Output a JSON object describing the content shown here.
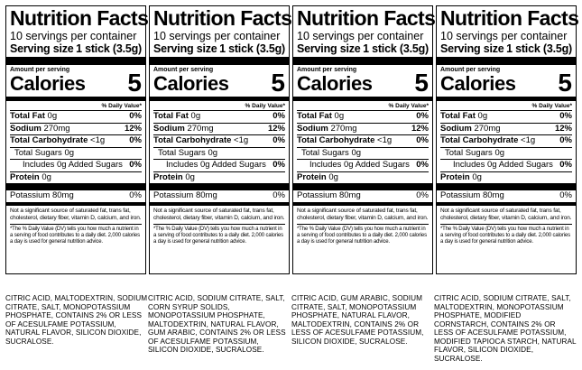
{
  "panels": [
    {
      "title": "Nutrition Facts",
      "servings": "10 servings per container",
      "serving_label": "Serving size",
      "serving_value": "1 stick (3.5g)",
      "amount_label": "Amount per serving",
      "calories_label": "Calories",
      "calories_value": "5",
      "dv_header": "% Daily Value*",
      "total_fat": {
        "label": "Total Fat",
        "value": "0g",
        "pct": "0%"
      },
      "sodium": {
        "label": "Sodium",
        "value": "270mg",
        "pct": "12%"
      },
      "total_carb": {
        "label": "Total Carbohydrate",
        "value": "<1g",
        "pct": "0%"
      },
      "total_sugars": {
        "label": "Total Sugars 0g"
      },
      "added_sugars": {
        "label": "Includes 0g Added Sugars",
        "pct": "0%"
      },
      "protein": {
        "label": "Protein",
        "value": "0g"
      },
      "potassium": {
        "label": "Potassium 80mg",
        "pct": "0%"
      },
      "note1": "Not a significant source of saturated fat, trans fat, cholesterol, dietary fiber, vitamin D, calcium, and iron.",
      "note2": "*The % Daily Value (DV) tells you how much a nutrient in a serving of food contributes to a daily diet. 2,000 calories a day is used for general nutrition advice."
    },
    {
      "title": "Nutrition Facts",
      "servings": "10 servings per container",
      "serving_label": "Serving size",
      "serving_value": "1 stick (3.5g)",
      "amount_label": "Amount per serving",
      "calories_label": "Calories",
      "calories_value": "5",
      "dv_header": "% Daily Value*",
      "total_fat": {
        "label": "Total Fat",
        "value": "0g",
        "pct": "0%"
      },
      "sodium": {
        "label": "Sodium",
        "value": "270mg",
        "pct": "12%"
      },
      "total_carb": {
        "label": "Total Carbohydrate",
        "value": "<1g",
        "pct": "0%"
      },
      "total_sugars": {
        "label": "Total Sugars 0g"
      },
      "added_sugars": {
        "label": "Includes 0g Added Sugars",
        "pct": "0%"
      },
      "protein": {
        "label": "Protein",
        "value": "0g"
      },
      "potassium": {
        "label": "Potassium 80mg",
        "pct": "0%"
      },
      "note1": "Not a significant source of saturated fat, trans fat, cholesterol, dietary fiber, vitamin D, calcium, and iron.",
      "note2": "*The % Daily Value (DV) tells you how much a nutrient in a serving of food contributes to a daily diet. 2,000 calories a day is used for general nutrition advice."
    },
    {
      "title": "Nutrition Facts",
      "servings": "10 servings per container",
      "serving_label": "Serving size",
      "serving_value": "1 stick (3.5g)",
      "amount_label": "Amount per serving",
      "calories_label": "Calories",
      "calories_value": "5",
      "dv_header": "% Daily Value*",
      "total_fat": {
        "label": "Total Fat",
        "value": "0g",
        "pct": "0%"
      },
      "sodium": {
        "label": "Sodium",
        "value": "270mg",
        "pct": "12%"
      },
      "total_carb": {
        "label": "Total Carbohydrate",
        "value": "<1g",
        "pct": "0%"
      },
      "total_sugars": {
        "label": "Total Sugars 0g"
      },
      "added_sugars": {
        "label": "Includes 0g Added Sugars",
        "pct": "0%"
      },
      "protein": {
        "label": "Protein",
        "value": "0g"
      },
      "potassium": {
        "label": "Potassium 80mg",
        "pct": "0%"
      },
      "note1": "Not a significant source of saturated fat, trans fat, cholesterol, dietary fiber, vitamin D, calcium, and iron.",
      "note2": "*The % Daily Value (DV) tells you how much a nutrient in a serving of food contributes to a daily diet. 2,000 calories a day is used for general nutrition advice."
    },
    {
      "title": "Nutrition Facts",
      "servings": "10 servings per container",
      "serving_label": "Serving size",
      "serving_value": "1 stick (3.5g)",
      "amount_label": "Amount per serving",
      "calories_label": "Calories",
      "calories_value": "5",
      "dv_header": "% Daily Value*",
      "total_fat": {
        "label": "Total Fat",
        "value": "0g",
        "pct": "0%"
      },
      "sodium": {
        "label": "Sodium",
        "value": "270mg",
        "pct": "12%"
      },
      "total_carb": {
        "label": "Total Carbohydrate",
        "value": "<1g",
        "pct": "0%"
      },
      "total_sugars": {
        "label": "Total Sugars 0g"
      },
      "added_sugars": {
        "label": "Includes 0g Added Sugars",
        "pct": "0%"
      },
      "protein": {
        "label": "Protein",
        "value": "0g"
      },
      "potassium": {
        "label": "Potassium 80mg",
        "pct": "0%"
      },
      "note1": "Not a significant source of saturated fat, trans fat, cholesterol, dietary fiber, vitamin D, calcium, and iron.",
      "note2": "*The % Daily Value (DV) tells you how much a nutrient in a serving of food contributes to a daily diet. 2,000 calories a day is used for general nutrition advice."
    }
  ],
  "ingredients": [
    "CITRIC ACID, MALTODEXTRIN, SODIUM CITRATE, SALT, MONOPOTASSIUM PHOSPHATE, CONTAINS 2% OR LESS OF ACESULFAME POTASSIUM, NATURAL FLAVOR, SILICON DIOXIDE, SUCRALOSE.",
    "CITRIC ACID, SODIUM CITRATE, SALT, CORN SYRUP SOLIDS, MONOPOTASSIUM PHOSPHATE, MALTODEXTRIN, NATURAL FLAVOR, GUM ARABIC, CONTAINS 2% OR LESS OF ACESULFAME POTASSIUM, SILICON DIOXIDE, SUCRALOSE.",
    "CITRIC ACID, GUM ARABIC, SODIUM CITRATE, SALT, MONOPOTASSIUM PHOSPHATE, NATURAL FLAVOR, MALTODEXTRIN, CONTAINS 2% OR LESS OF ACESULFAME POTASSIUM, SILICON DIOXIDE, SUCRALOSE.",
    "CITRIC ACID, SODIUM CITRATE, SALT, MALTODEXTRIN, MONOPOTASSIUM PHOSPHATE, MODIFIED CORNSTARCH, CONTAINS 2% OR LESS OF ACESULFAME POTASSIUM, MODIFIED TAPIOCA STARCH, NATURAL FLAVOR, SILICON DIOXIDE, SUCRALOSE."
  ]
}
